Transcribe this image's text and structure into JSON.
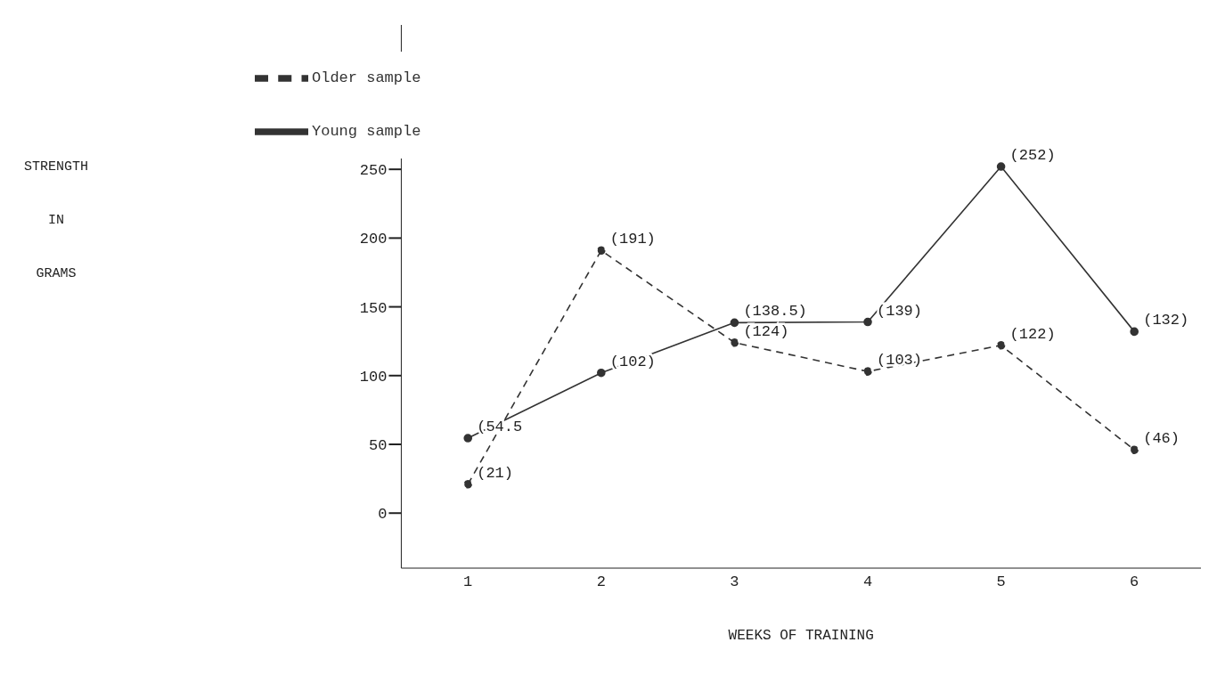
{
  "chart_data": {
    "type": "line",
    "xlabel": "WEEKS OF TRAINING",
    "ylabel": "STRENGTH IN GRAMS",
    "categories": [
      "1",
      "2",
      "3",
      "4",
      "5",
      "6"
    ],
    "series": [
      {
        "name": "Older sample",
        "color": "#333333",
        "line_style": "dashed",
        "values": [
          21,
          191,
          124,
          103,
          122,
          46
        ],
        "value_labels": [
          "(21)",
          "(191)",
          "(124)",
          "(103)",
          "(122)",
          "(46)"
        ]
      },
      {
        "name": "Young sample",
        "color": "#333333",
        "line_style": "solid",
        "values": [
          54.5,
          102,
          138.5,
          139,
          252,
          132
        ],
        "value_labels": [
          "(54.5",
          "(102)",
          "(138.5)",
          "(139)",
          "(252)",
          "(132)"
        ]
      }
    ],
    "ylim": [
      -40,
      355
    ],
    "yticks": [
      0,
      50,
      100,
      150,
      200,
      250
    ],
    "legend": "top left",
    "marker": "circle"
  }
}
